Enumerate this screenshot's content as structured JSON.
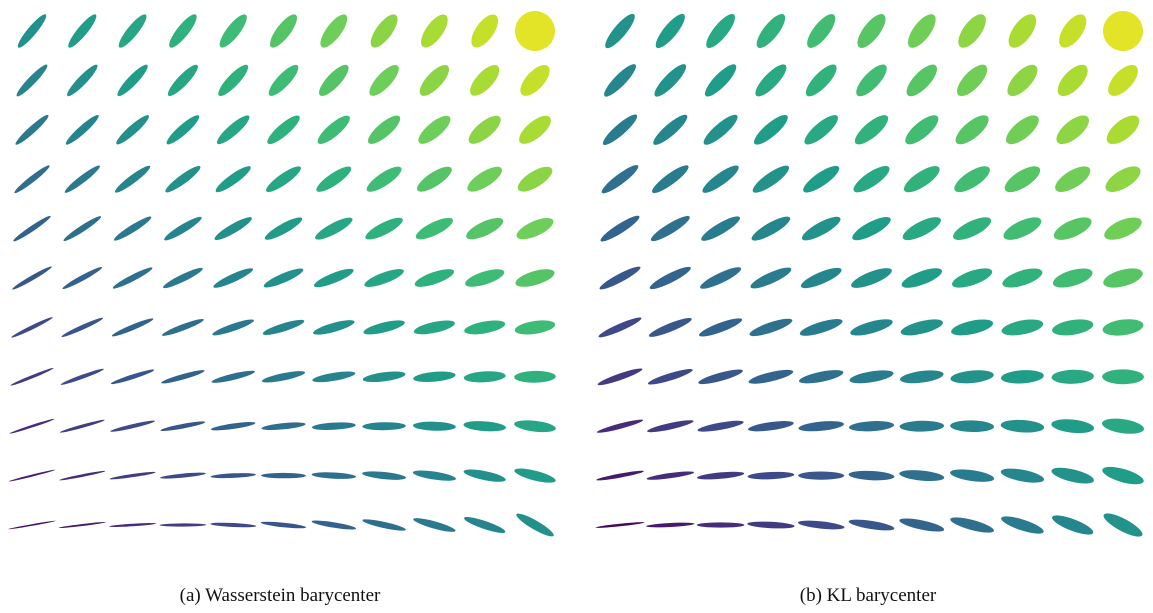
{
  "panels": [
    {
      "id": "a",
      "caption": "(a) Wasserstein barycenter",
      "method": "wasserstein",
      "rows": 11,
      "cols": 11
    },
    {
      "id": "b",
      "caption": "(b) KL barycenter",
      "method": "kl",
      "rows": 11,
      "cols": 11
    }
  ],
  "colormap": "viridis",
  "colors": {
    "viridis": [
      "#440154",
      "#482878",
      "#3e4989",
      "#31688e",
      "#26828e",
      "#1f9e89",
      "#35b779",
      "#6ece58",
      "#b5de2b",
      "#fde725"
    ]
  }
}
